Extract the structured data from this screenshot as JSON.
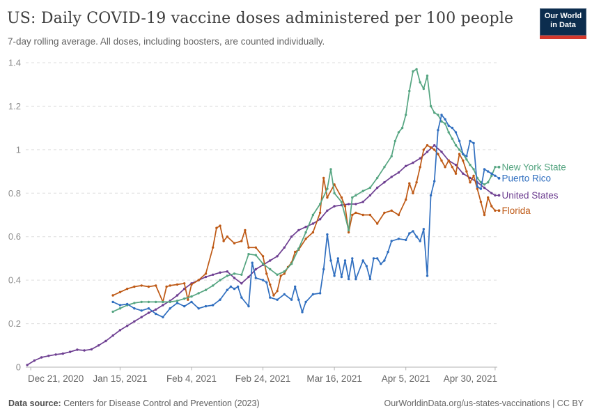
{
  "header": {
    "title": "US: Daily COVID-19 vaccine doses administered per 100 people",
    "subtitle": "7-day rolling average. All doses, including boosters, are counted individually.",
    "logo": {
      "line1": "Our World",
      "line2": "in Data",
      "bg_color": "#0c2d4e",
      "accent_color": "#d4382c"
    }
  },
  "footer": {
    "source_label": "Data source:",
    "source_text": " Centers for Disease Control and Prevention (2023)",
    "attribution": "OurWorldinData.org/us-states-vaccinations | CC BY"
  },
  "chart_data": {
    "type": "line",
    "title": "US: Daily COVID-19 vaccine doses administered per 100 people",
    "subtitle": "7-day rolling average. All doses, including boosters, are counted individually.",
    "xlabel": "",
    "ylabel": "",
    "grid": "dashed horizontal",
    "legend_position": "right of line ends",
    "x_unit": "days since Dec 21, 2020 (daily dates)",
    "x_ticks": [
      {
        "day": 0,
        "label": "Dec 21, 2020"
      },
      {
        "day": 25,
        "label": "Jan 15, 2021"
      },
      {
        "day": 45,
        "label": "Feb 4, 2021"
      },
      {
        "day": 65,
        "label": "Feb 24, 2021"
      },
      {
        "day": 85,
        "label": "Mar 16, 2021"
      },
      {
        "day": 105,
        "label": "Apr 5, 2021"
      },
      {
        "day": 130,
        "label": "Apr 30, 2021"
      }
    ],
    "y_ticks": [
      0,
      0.2,
      0.4,
      0.6,
      0.8,
      1,
      1.2,
      1.4
    ],
    "ylim": [
      0,
      1.4
    ],
    "xlim_days": [
      -1.4,
      130.6
    ],
    "series": [
      {
        "name": "United States",
        "color": "#6d3e91",
        "points": [
          [
            -1,
            0.01
          ],
          [
            1,
            0.03
          ],
          [
            3,
            0.045
          ],
          [
            5,
            0.052
          ],
          [
            7,
            0.058
          ],
          [
            9,
            0.062
          ],
          [
            11,
            0.07
          ],
          [
            13,
            0.08
          ],
          [
            15,
            0.077
          ],
          [
            17,
            0.082
          ],
          [
            19,
            0.1
          ],
          [
            21,
            0.12
          ],
          [
            23,
            0.145
          ],
          [
            25,
            0.17
          ],
          [
            27,
            0.19
          ],
          [
            29,
            0.21
          ],
          [
            31,
            0.23
          ],
          [
            33,
            0.25
          ],
          [
            35,
            0.265
          ],
          [
            37,
            0.285
          ],
          [
            39,
            0.305
          ],
          [
            41,
            0.33
          ],
          [
            43,
            0.36
          ],
          [
            45,
            0.385
          ],
          [
            47,
            0.4
          ],
          [
            49,
            0.415
          ],
          [
            51,
            0.425
          ],
          [
            53,
            0.435
          ],
          [
            55,
            0.44
          ],
          [
            57,
            0.41
          ],
          [
            59,
            0.385
          ],
          [
            61,
            0.415
          ],
          [
            63,
            0.45
          ],
          [
            65,
            0.47
          ],
          [
            67,
            0.49
          ],
          [
            69,
            0.51
          ],
          [
            71,
            0.55
          ],
          [
            73,
            0.6
          ],
          [
            75,
            0.63
          ],
          [
            77,
            0.645
          ],
          [
            79,
            0.66
          ],
          [
            81,
            0.68
          ],
          [
            83,
            0.72
          ],
          [
            85,
            0.74
          ],
          [
            87,
            0.745
          ],
          [
            89,
            0.75
          ],
          [
            91,
            0.75
          ],
          [
            93,
            0.76
          ],
          [
            95,
            0.79
          ],
          [
            97,
            0.825
          ],
          [
            99,
            0.85
          ],
          [
            101,
            0.875
          ],
          [
            103,
            0.895
          ],
          [
            105,
            0.925
          ],
          [
            107,
            0.94
          ],
          [
            109,
            0.96
          ],
          [
            111,
            0.99
          ],
          [
            113,
            1.02
          ],
          [
            115,
            0.99
          ],
          [
            117,
            0.95
          ],
          [
            119,
            0.93
          ],
          [
            121,
            0.89
          ],
          [
            123,
            0.87
          ],
          [
            125,
            0.85
          ],
          [
            127,
            0.825
          ],
          [
            129,
            0.8
          ],
          [
            130,
            0.79
          ]
        ]
      },
      {
        "name": "Florida",
        "color": "#be5915",
        "points": [
          [
            23,
            0.33
          ],
          [
            25,
            0.345
          ],
          [
            27,
            0.36
          ],
          [
            29,
            0.37
          ],
          [
            31,
            0.375
          ],
          [
            33,
            0.37
          ],
          [
            35,
            0.375
          ],
          [
            37,
            0.3
          ],
          [
            38,
            0.37
          ],
          [
            39,
            0.375
          ],
          [
            41,
            0.38
          ],
          [
            43,
            0.385
          ],
          [
            44,
            0.31
          ],
          [
            45,
            0.38
          ],
          [
            47,
            0.4
          ],
          [
            49,
            0.43
          ],
          [
            51,
            0.55
          ],
          [
            52,
            0.64
          ],
          [
            53,
            0.65
          ],
          [
            54,
            0.58
          ],
          [
            55,
            0.6
          ],
          [
            57,
            0.57
          ],
          [
            59,
            0.58
          ],
          [
            60,
            0.63
          ],
          [
            61,
            0.55
          ],
          [
            63,
            0.55
          ],
          [
            65,
            0.51
          ],
          [
            66,
            0.43
          ],
          [
            67,
            0.38
          ],
          [
            68,
            0.33
          ],
          [
            69,
            0.35
          ],
          [
            70,
            0.42
          ],
          [
            71,
            0.43
          ],
          [
            72,
            0.46
          ],
          [
            73,
            0.48
          ],
          [
            74,
            0.53
          ],
          [
            75,
            0.54
          ],
          [
            77,
            0.59
          ],
          [
            79,
            0.62
          ],
          [
            81,
            0.71
          ],
          [
            82,
            0.87
          ],
          [
            83,
            0.78
          ],
          [
            85,
            0.84
          ],
          [
            87,
            0.78
          ],
          [
            88,
            0.74
          ],
          [
            89,
            0.62
          ],
          [
            90,
            0.7
          ],
          [
            91,
            0.71
          ],
          [
            93,
            0.7
          ],
          [
            95,
            0.7
          ],
          [
            97,
            0.66
          ],
          [
            99,
            0.71
          ],
          [
            101,
            0.72
          ],
          [
            103,
            0.7
          ],
          [
            105,
            0.77
          ],
          [
            106,
            0.845
          ],
          [
            107,
            0.8
          ],
          [
            108,
            0.85
          ],
          [
            109,
            0.92
          ],
          [
            110,
            1.0
          ],
          [
            111,
            1.02
          ],
          [
            112,
            1.01
          ],
          [
            113,
            1.0
          ],
          [
            114,
            0.98
          ],
          [
            115,
            0.95
          ],
          [
            116,
            0.92
          ],
          [
            117,
            0.95
          ],
          [
            118,
            0.92
          ],
          [
            119,
            0.89
          ],
          [
            120,
            0.98
          ],
          [
            121,
            0.95
          ],
          [
            122,
            0.9
          ],
          [
            123,
            0.85
          ],
          [
            124,
            0.88
          ],
          [
            125,
            0.82
          ],
          [
            126,
            0.76
          ],
          [
            127,
            0.7
          ],
          [
            128,
            0.78
          ],
          [
            129,
            0.74
          ],
          [
            130,
            0.72
          ]
        ]
      },
      {
        "name": "New York State",
        "color": "#55a581",
        "points": [
          [
            23,
            0.255
          ],
          [
            25,
            0.27
          ],
          [
            27,
            0.285
          ],
          [
            29,
            0.295
          ],
          [
            31,
            0.3
          ],
          [
            33,
            0.3
          ],
          [
            35,
            0.3
          ],
          [
            37,
            0.3
          ],
          [
            39,
            0.3
          ],
          [
            41,
            0.305
          ],
          [
            43,
            0.315
          ],
          [
            45,
            0.325
          ],
          [
            47,
            0.34
          ],
          [
            49,
            0.355
          ],
          [
            51,
            0.375
          ],
          [
            53,
            0.4
          ],
          [
            55,
            0.42
          ],
          [
            57,
            0.43
          ],
          [
            59,
            0.425
          ],
          [
            61,
            0.52
          ],
          [
            63,
            0.515
          ],
          [
            65,
            0.475
          ],
          [
            67,
            0.45
          ],
          [
            69,
            0.425
          ],
          [
            71,
            0.44
          ],
          [
            73,
            0.475
          ],
          [
            75,
            0.545
          ],
          [
            77,
            0.62
          ],
          [
            79,
            0.7
          ],
          [
            81,
            0.75
          ],
          [
            83,
            0.82
          ],
          [
            84,
            0.91
          ],
          [
            85,
            0.8
          ],
          [
            87,
            0.76
          ],
          [
            89,
            0.63
          ],
          [
            90,
            0.78
          ],
          [
            91,
            0.79
          ],
          [
            93,
            0.81
          ],
          [
            95,
            0.825
          ],
          [
            97,
            0.87
          ],
          [
            99,
            0.92
          ],
          [
            101,
            0.97
          ],
          [
            102,
            1.04
          ],
          [
            103,
            1.08
          ],
          [
            104,
            1.1
          ],
          [
            105,
            1.16
          ],
          [
            106,
            1.27
          ],
          [
            107,
            1.36
          ],
          [
            108,
            1.37
          ],
          [
            109,
            1.31
          ],
          [
            110,
            1.28
          ],
          [
            111,
            1.34
          ],
          [
            112,
            1.2
          ],
          [
            113,
            1.17
          ],
          [
            114,
            1.16
          ],
          [
            115,
            1.13
          ],
          [
            116,
            1.12
          ],
          [
            117,
            1.08
          ],
          [
            118,
            1.05
          ],
          [
            119,
            1.02
          ],
          [
            120,
            1.0
          ],
          [
            121,
            0.98
          ],
          [
            122,
            0.955
          ],
          [
            123,
            0.93
          ],
          [
            124,
            0.91
          ],
          [
            125,
            0.87
          ],
          [
            126,
            0.85
          ],
          [
            127,
            0.84
          ],
          [
            128,
            0.85
          ],
          [
            129,
            0.88
          ],
          [
            130,
            0.92
          ]
        ]
      },
      {
        "name": "Puerto Rico",
        "color": "#2f6ebf",
        "points": [
          [
            23,
            0.3
          ],
          [
            25,
            0.285
          ],
          [
            27,
            0.29
          ],
          [
            29,
            0.27
          ],
          [
            31,
            0.26
          ],
          [
            33,
            0.27
          ],
          [
            35,
            0.245
          ],
          [
            37,
            0.23
          ],
          [
            39,
            0.27
          ],
          [
            41,
            0.295
          ],
          [
            43,
            0.28
          ],
          [
            45,
            0.3
          ],
          [
            47,
            0.27
          ],
          [
            49,
            0.28
          ],
          [
            51,
            0.285
          ],
          [
            53,
            0.31
          ],
          [
            55,
            0.355
          ],
          [
            56,
            0.37
          ],
          [
            57,
            0.36
          ],
          [
            58,
            0.37
          ],
          [
            59,
            0.32
          ],
          [
            61,
            0.28
          ],
          [
            62,
            0.48
          ],
          [
            63,
            0.41
          ],
          [
            65,
            0.4
          ],
          [
            66,
            0.39
          ],
          [
            67,
            0.32
          ],
          [
            69,
            0.31
          ],
          [
            71,
            0.335
          ],
          [
            73,
            0.31
          ],
          [
            74,
            0.37
          ],
          [
            75,
            0.31
          ],
          [
            76,
            0.253
          ],
          [
            77,
            0.3
          ],
          [
            79,
            0.335
          ],
          [
            81,
            0.34
          ],
          [
            82,
            0.45
          ],
          [
            83,
            0.61
          ],
          [
            84,
            0.49
          ],
          [
            85,
            0.42
          ],
          [
            86,
            0.5
          ],
          [
            87,
            0.415
          ],
          [
            88,
            0.49
          ],
          [
            89,
            0.405
          ],
          [
            90,
            0.5
          ],
          [
            91,
            0.405
          ],
          [
            93,
            0.49
          ],
          [
            94,
            0.465
          ],
          [
            95,
            0.405
          ],
          [
            96,
            0.5
          ],
          [
            97,
            0.5
          ],
          [
            98,
            0.475
          ],
          [
            99,
            0.49
          ],
          [
            100,
            0.53
          ],
          [
            101,
            0.58
          ],
          [
            103,
            0.59
          ],
          [
            105,
            0.585
          ],
          [
            106,
            0.615
          ],
          [
            107,
            0.625
          ],
          [
            108,
            0.6
          ],
          [
            109,
            0.58
          ],
          [
            110,
            0.635
          ],
          [
            111,
            0.42
          ],
          [
            112,
            0.79
          ],
          [
            113,
            0.855
          ],
          [
            114,
            1.09
          ],
          [
            115,
            1.16
          ],
          [
            116,
            1.14
          ],
          [
            117,
            1.11
          ],
          [
            118,
            1.1
          ],
          [
            119,
            1.08
          ],
          [
            120,
            1.04
          ],
          [
            121,
            0.98
          ],
          [
            122,
            0.97
          ],
          [
            123,
            1.04
          ],
          [
            124,
            1.03
          ],
          [
            125,
            0.83
          ],
          [
            126,
            0.82
          ],
          [
            127,
            0.91
          ],
          [
            128,
            0.9
          ],
          [
            129,
            0.89
          ],
          [
            130,
            0.88
          ]
        ]
      }
    ]
  }
}
